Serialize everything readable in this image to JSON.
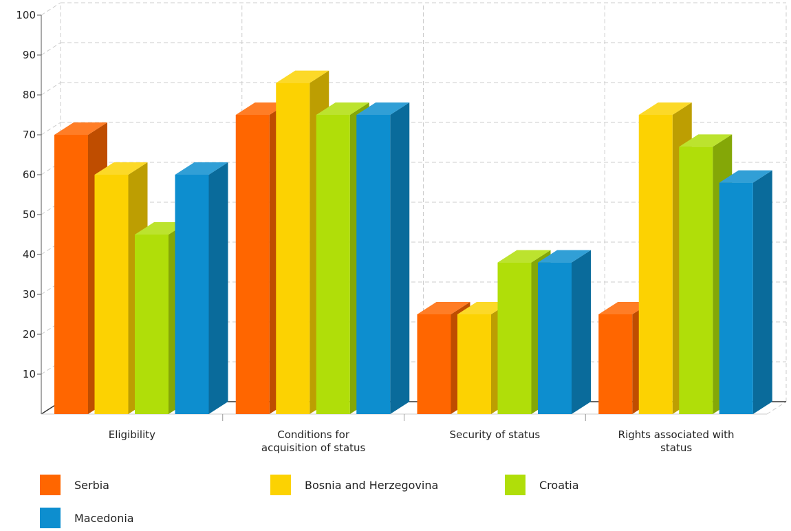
{
  "chart_data": {
    "type": "bar",
    "title": "",
    "xlabel": "",
    "ylabel": "",
    "ylim": [
      0,
      100
    ],
    "yticks": [
      10,
      20,
      30,
      40,
      50,
      60,
      70,
      80,
      90,
      100
    ],
    "grid": true,
    "legend_position": "bottom-left",
    "categories": [
      [
        "Eligibility"
      ],
      [
        "Conditions for",
        "acquisition of status"
      ],
      [
        "Security of status"
      ],
      [
        "Rights associated with",
        "status"
      ]
    ],
    "series": [
      {
        "name": "Serbia",
        "color": "#ff6600",
        "values": [
          70,
          75,
          25,
          25
        ]
      },
      {
        "name": "Bosnia and Herzegovina",
        "color": "#fcd202",
        "values": [
          60,
          83,
          25,
          75
        ]
      },
      {
        "name": "Croatia",
        "color": "#b0de09",
        "values": [
          45,
          75,
          38,
          67
        ]
      },
      {
        "name": "Macedonia",
        "color": "#0d8ecf",
        "values": [
          60,
          75,
          38,
          58
        ]
      }
    ]
  }
}
